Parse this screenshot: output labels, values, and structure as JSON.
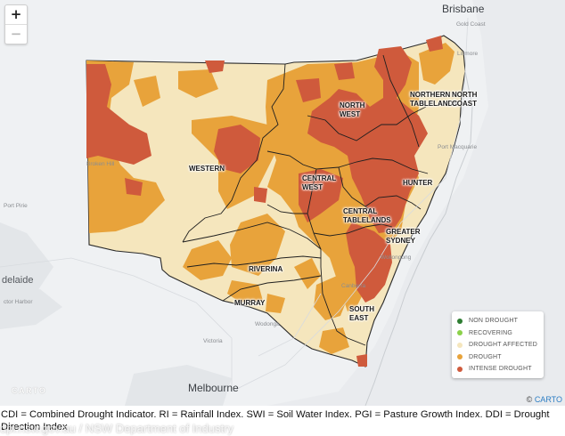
{
  "map": {
    "zoom_in_label": "+",
    "zoom_out_label": "−",
    "cities": [
      {
        "id": "brisbane",
        "name": "Brisbane",
        "class": "big"
      },
      {
        "id": "gold-coast",
        "name": "Gold Coast",
        "class": "small"
      },
      {
        "id": "lismore",
        "name": "Lismore",
        "class": "small"
      },
      {
        "id": "port-macquarie",
        "name": "Port Macquarie",
        "class": "small"
      },
      {
        "id": "broken-hill",
        "name": "Broken Hill",
        "class": "small"
      },
      {
        "id": "wollongong",
        "name": "Wollongong",
        "class": "small"
      },
      {
        "id": "canberra",
        "name": "Canberra",
        "class": "small"
      },
      {
        "id": "wodonga",
        "name": "Wodonga",
        "class": "small"
      },
      {
        "id": "victoria",
        "name": "Victoria",
        "class": "small"
      },
      {
        "id": "melbourne",
        "name": "Melbourne",
        "class": "big"
      },
      {
        "id": "adelaide",
        "name": "delaide",
        "class": ""
      },
      {
        "id": "port-pirie",
        "name": "Port Pirie",
        "class": "small"
      },
      {
        "id": "victor-harbor",
        "name": "ctor Harbor",
        "class": "small"
      }
    ],
    "regions": [
      {
        "id": "north-west",
        "lines": [
          "NORTH",
          "WEST"
        ]
      },
      {
        "id": "northern-tablelands",
        "lines": [
          "NORTHERN",
          "TABLELANDS"
        ]
      },
      {
        "id": "north-coast",
        "lines": [
          "NORTH",
          "COAST"
        ]
      },
      {
        "id": "western",
        "lines": [
          "WESTERN"
        ]
      },
      {
        "id": "central-west",
        "lines": [
          "CENTRAL",
          "WEST"
        ]
      },
      {
        "id": "hunter",
        "lines": [
          "HUNTER"
        ]
      },
      {
        "id": "central-tablelands",
        "lines": [
          "CENTRAL",
          "TABLELANDS"
        ]
      },
      {
        "id": "greater-sydney",
        "lines": [
          "GREATER",
          "SYDNEY"
        ]
      },
      {
        "id": "riverina",
        "lines": [
          "RIVERINA"
        ]
      },
      {
        "id": "murray",
        "lines": [
          "MURRAY"
        ]
      },
      {
        "id": "south-east",
        "lines": [
          "SOUTH",
          "EAST"
        ]
      }
    ]
  },
  "legend": {
    "items": [
      {
        "label": "NON DROUGHT",
        "color": "#2e7d32"
      },
      {
        "label": "RECOVERING",
        "color": "#8bd14a"
      },
      {
        "label": "DROUGHT AFFECTED",
        "color": "#f5e6bd"
      },
      {
        "label": "DROUGHT",
        "color": "#e8a33b"
      },
      {
        "label": "INTENSE DROUGHT",
        "color": "#cf5a3c"
      }
    ]
  },
  "attribution": {
    "logo": "CARTO",
    "copyright_symbol": "©",
    "link": "CARTO"
  },
  "caption": "CDI = Combined Drought Indicator. RI = Rainfall Index. SWI = Soil Water Index. PGI = Pasture Growth Index. DDI = Drought Direction Index",
  "watermark": "dpi.nsw.gov.au / NSW Department of Industry",
  "colors": {
    "affected": "#f5e6bd",
    "drought": "#e8a33b",
    "intense": "#cf5a3c",
    "land": "#eef0f2",
    "water": "#dde1e6"
  }
}
